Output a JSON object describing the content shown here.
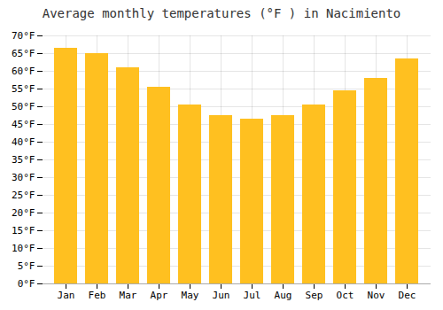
{
  "chart_data": {
    "type": "bar",
    "title": "Average monthly temperatures (°F ) in Nacimiento",
    "categories": [
      "Jan",
      "Feb",
      "Mar",
      "Apr",
      "May",
      "Jun",
      "Jul",
      "Aug",
      "Sep",
      "Oct",
      "Nov",
      "Dec"
    ],
    "values": [
      66.5,
      65.0,
      61.0,
      55.5,
      50.5,
      47.5,
      46.5,
      47.5,
      50.5,
      54.5,
      58.0,
      63.5
    ],
    "color": "#FFC020",
    "ylim": [
      0,
      70
    ],
    "yticks": [
      {
        "value": 0,
        "label": "0°F"
      },
      {
        "value": 5,
        "label": "5°F"
      },
      {
        "value": 10,
        "label": "10°F"
      },
      {
        "value": 15,
        "label": "15°F"
      },
      {
        "value": 20,
        "label": "20°F"
      },
      {
        "value": 25,
        "label": "25°F"
      },
      {
        "value": 30,
        "label": "30°F"
      },
      {
        "value": 35,
        "label": "35°F"
      },
      {
        "value": 40,
        "label": "40°F"
      },
      {
        "value": 45,
        "label": "45°F"
      },
      {
        "value": 50,
        "label": "50°F"
      },
      {
        "value": 55,
        "label": "55°F"
      },
      {
        "value": 60,
        "label": "60°F"
      },
      {
        "value": 65,
        "label": "65°F"
      },
      {
        "value": 70,
        "label": "70°F"
      }
    ],
    "grid": true
  }
}
